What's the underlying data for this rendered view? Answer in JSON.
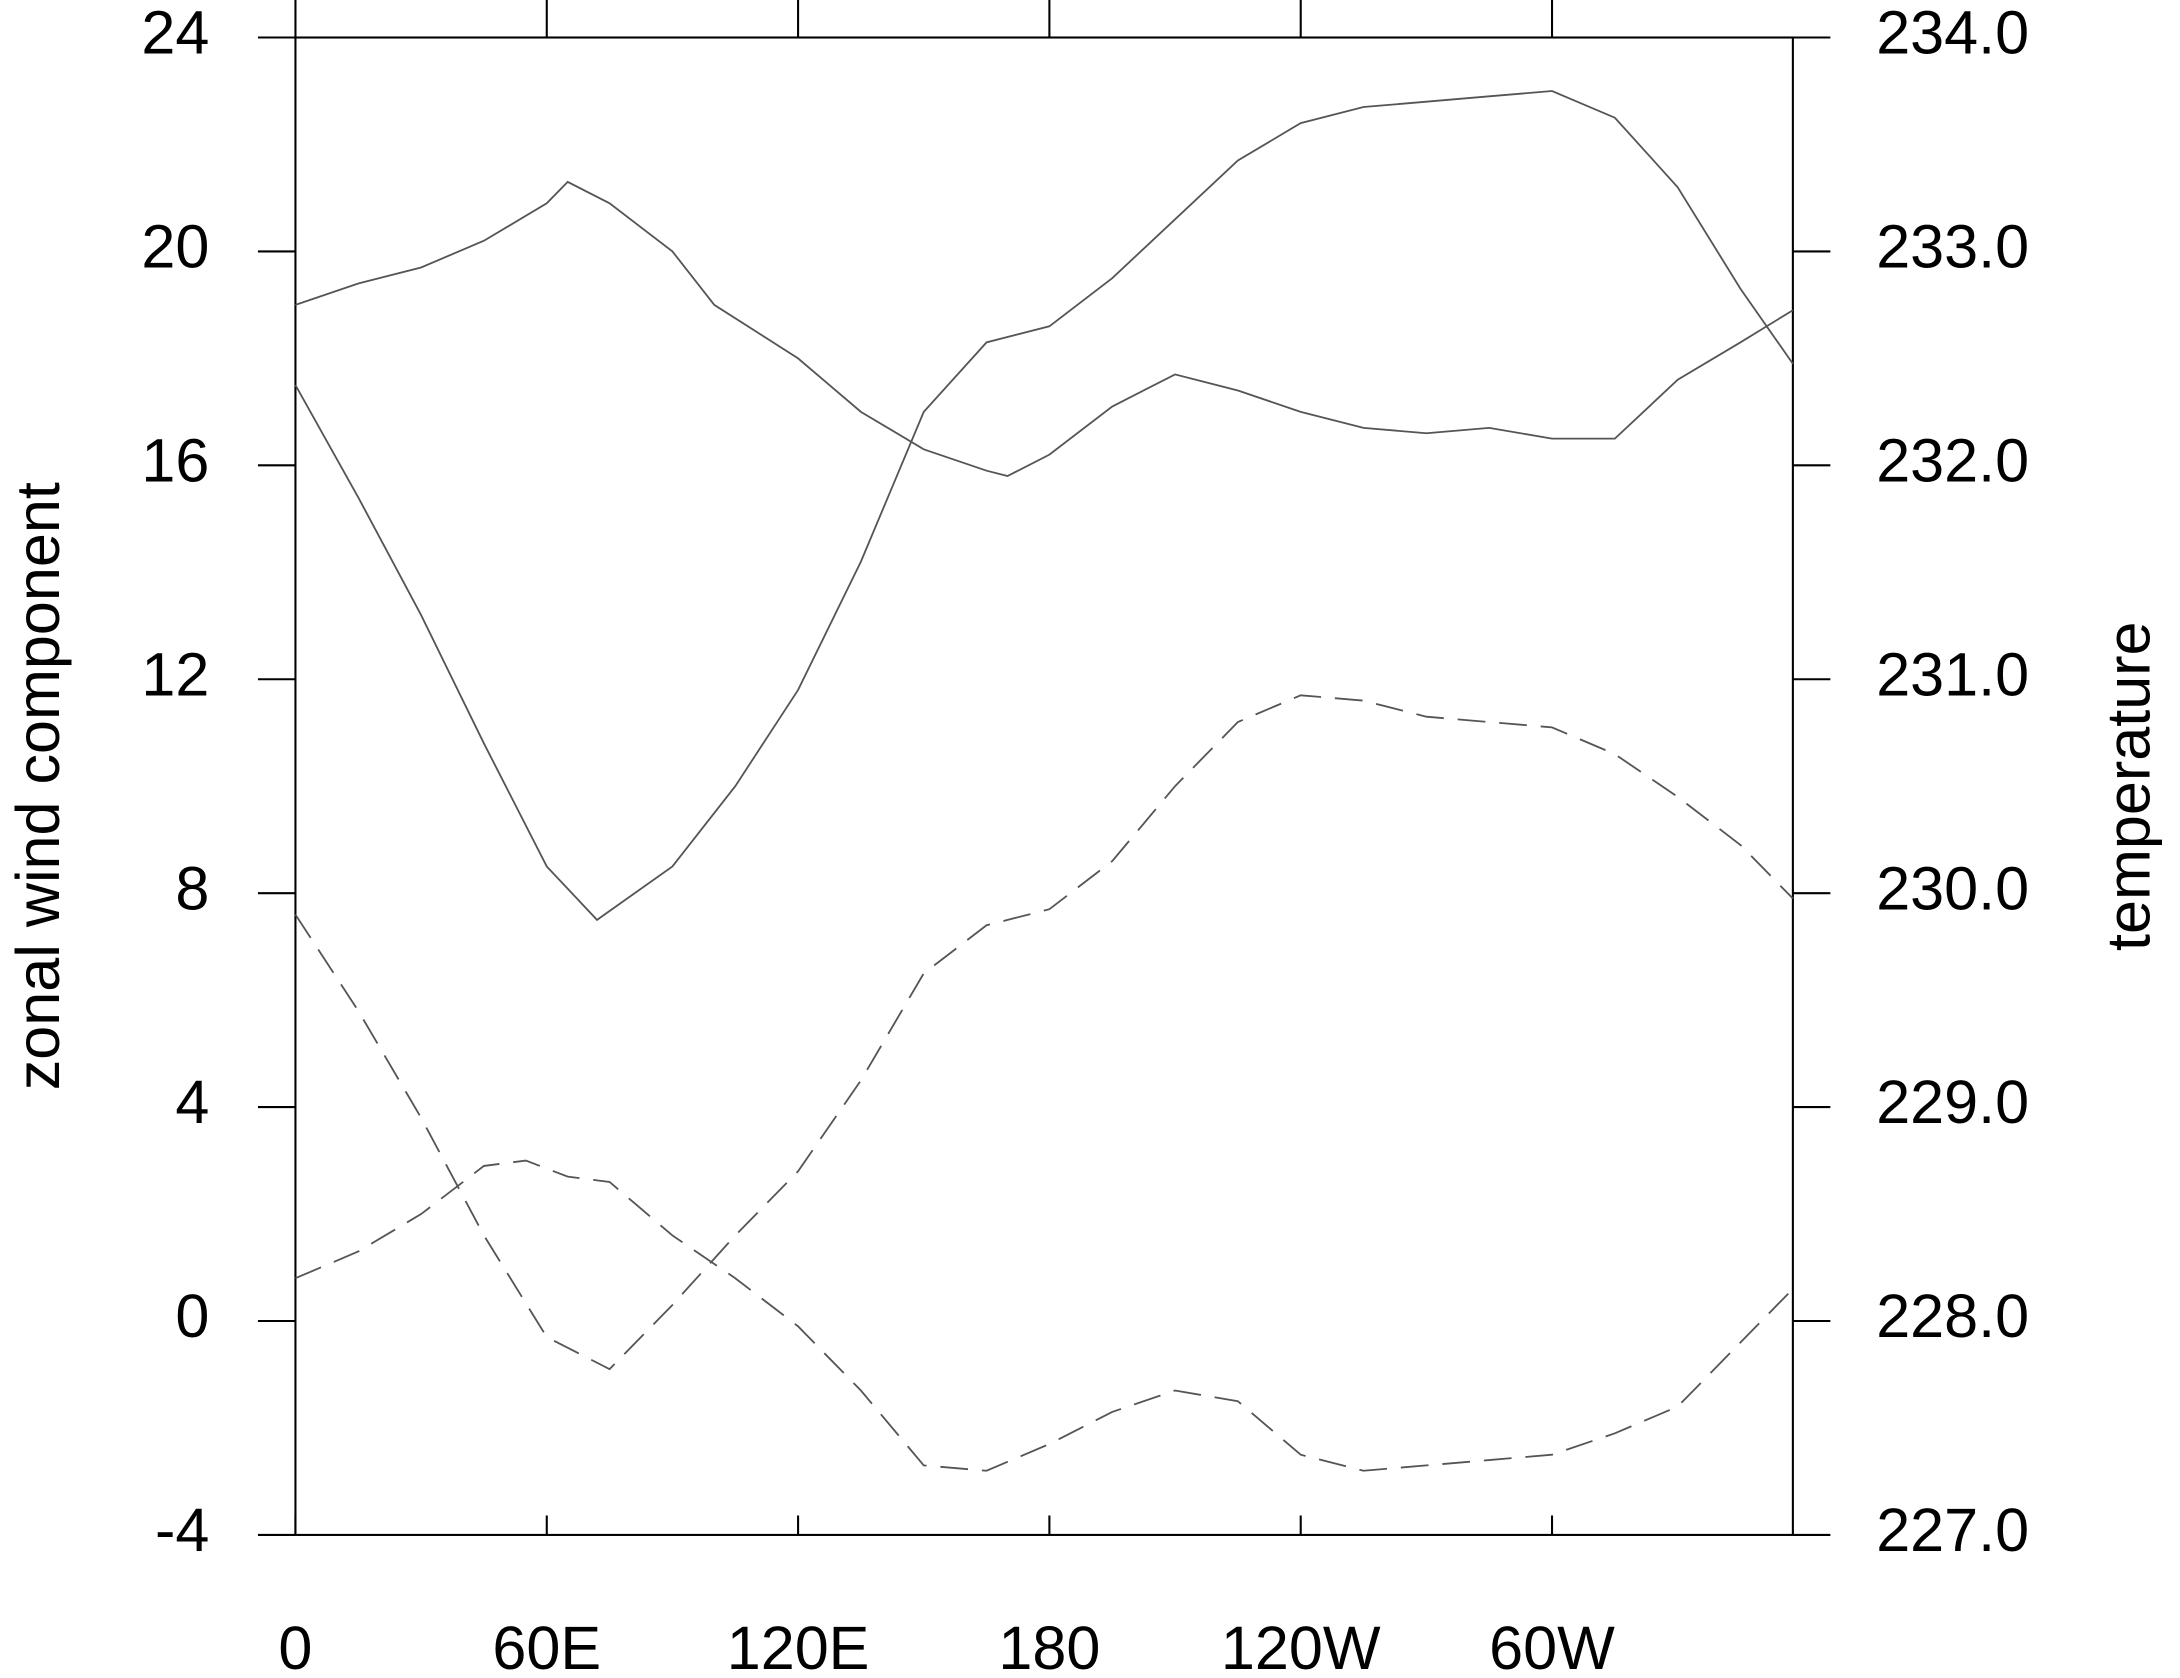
{
  "chart_data": {
    "type": "line",
    "y_label": "zonal wind component",
    "y2_label": "temperature",
    "xlim": [
      0,
      357.5
    ],
    "xticks": [
      0,
      {
        "value": 60,
        "label": "60E"
      },
      {
        "value": 120,
        "label": "120E"
      },
      180,
      {
        "value": 240,
        "label": "120W"
      },
      {
        "value": 300,
        "label": "60W"
      }
    ],
    "ylim": [
      -4,
      24
    ],
    "yticks": [
      -4,
      0,
      4,
      8,
      12,
      16,
      20,
      24
    ],
    "y2lim": [
      227,
      234
    ],
    "y2ticks": [
      {
        "value": 227,
        "label": "227.0"
      },
      {
        "value": 228,
        "label": "228.0"
      },
      {
        "value": 229,
        "label": "229.0"
      },
      {
        "value": 230,
        "label": "230.0"
      },
      {
        "value": 231,
        "label": "231.0"
      },
      {
        "value": 232,
        "label": "232.0"
      },
      {
        "value": 233,
        "label": "233.0"
      },
      {
        "value": 234,
        "label": "234.0"
      }
    ],
    "series": [
      {
        "color": "#555555",
        "dash": false,
        "x": [
          0,
          15,
          30,
          45,
          60,
          72,
          90,
          105,
          120,
          135,
          150,
          165,
          180,
          195,
          210,
          225,
          240,
          255,
          270,
          285,
          300,
          315,
          330,
          345,
          357.5
        ],
        "values": [
          17.5,
          15.4,
          13.2,
          10.8,
          8.5,
          7.5,
          8.5,
          10.0,
          11.8,
          14.2,
          17.0,
          18.3,
          18.6,
          19.5,
          20.6,
          21.7,
          22.4,
          22.7,
          22.8,
          22.9,
          23.0,
          22.5,
          21.2,
          19.3,
          17.9
        ]
      },
      {
        "color": "#555555",
        "dash": false,
        "x": [
          0,
          15,
          30,
          45,
          60,
          65,
          75,
          90,
          100,
          120,
          135,
          150,
          165,
          170,
          180,
          195,
          210,
          225,
          240,
          255,
          270,
          285,
          300,
          315,
          330,
          345,
          357.5
        ],
        "values": [
          19.0,
          19.4,
          19.7,
          20.2,
          20.9,
          21.3,
          20.9,
          20.0,
          19.0,
          18.0,
          17.0,
          16.3,
          15.9,
          15.8,
          16.2,
          17.1,
          17.7,
          17.4,
          17.0,
          16.7,
          16.6,
          16.7,
          16.5,
          16.5,
          17.6,
          18.3,
          18.9
        ]
      },
      {
        "color": "#555555",
        "dash": true,
        "axis": "y2",
        "x": [
          0,
          15,
          30,
          45,
          60,
          75,
          90,
          105,
          120,
          135,
          150,
          165,
          180,
          195,
          210,
          225,
          240,
          255,
          270,
          285,
          300,
          315,
          330,
          345,
          357.5
        ],
        "values": [
          229.9,
          229.45,
          228.95,
          228.4,
          227.925,
          227.775,
          228.075,
          228.4,
          228.7,
          229.125,
          229.625,
          229.85,
          229.925,
          230.15,
          230.5,
          230.8,
          230.925,
          230.9,
          230.825,
          230.8,
          230.775,
          230.65,
          230.45,
          230.225,
          229.975
        ]
      },
      {
        "color": "#555555",
        "dash": true,
        "axis": "y2",
        "x": [
          0,
          15,
          30,
          45,
          55,
          65,
          75,
          90,
          105,
          120,
          135,
          150,
          165,
          180,
          195,
          210,
          225,
          240,
          255,
          270,
          285,
          300,
          315,
          330,
          345,
          357.5
        ],
        "values": [
          228.2,
          228.325,
          228.5,
          228.725,
          228.75,
          228.675,
          228.65,
          228.4,
          228.2,
          227.975,
          227.675,
          227.325,
          227.3,
          227.425,
          227.575,
          227.675,
          227.625,
          227.375,
          227.3,
          227.325,
          227.35,
          227.375,
          227.475,
          227.6,
          227.9,
          228.15
        ]
      }
    ]
  }
}
